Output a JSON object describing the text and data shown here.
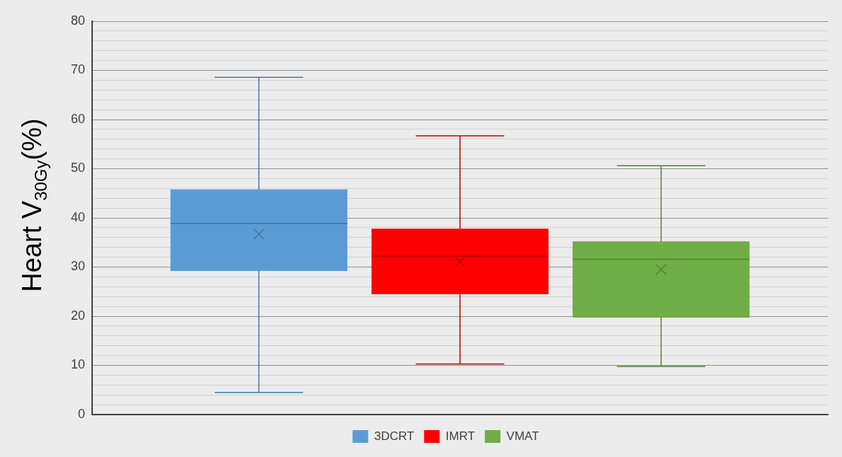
{
  "chart_data": {
    "type": "box",
    "ylabel": "Heart V$_{30Gy}$(%)",
    "categories": [
      null
    ],
    "series": [
      {
        "name": "3DCRT",
        "color": "#5b9bd5",
        "boxes": [
          {
            "low": 4.5,
            "q1": 29.2,
            "median": 38.9,
            "q3": 45.8,
            "high": 68.6,
            "mean": 36.7
          }
        ]
      },
      {
        "name": "IMRT",
        "color": "#ff0000",
        "boxes": [
          {
            "low": 10.3,
            "q1": 24.5,
            "median": 32.2,
            "q3": 37.8,
            "high": 56.7,
            "mean": 31.1
          }
        ]
      },
      {
        "name": "VMAT",
        "color": "#70ad47",
        "boxes": [
          {
            "low": 9.8,
            "q1": 19.7,
            "median": 31.6,
            "q3": 35.2,
            "high": 50.6,
            "mean": 29.5
          }
        ]
      }
    ],
    "ylim": [
      0,
      80
    ],
    "yticks": [
      0,
      {
        "value": 2,
        "label": null
      },
      {
        "value": 4,
        "label": null
      },
      {
        "value": 6,
        "label": null
      },
      {
        "value": 8,
        "label": null
      },
      10,
      {
        "value": 12,
        "label": null
      },
      {
        "value": 14,
        "label": null
      },
      {
        "value": 16,
        "label": null
      },
      {
        "value": 18,
        "label": null
      },
      20,
      {
        "value": 22,
        "label": null
      },
      {
        "value": 24,
        "label": null
      },
      {
        "value": 26,
        "label": null
      },
      {
        "value": 28,
        "label": null
      },
      30,
      {
        "value": 32,
        "label": null
      },
      {
        "value": 34,
        "label": null
      },
      {
        "value": 36,
        "label": null
      },
      {
        "value": 38,
        "label": null
      },
      40,
      {
        "value": 42,
        "label": null
      },
      {
        "value": 44,
        "label": null
      },
      {
        "value": 46,
        "label": null
      },
      {
        "value": 48,
        "label": null
      },
      50,
      {
        "value": 52,
        "label": null
      },
      {
        "value": 54,
        "label": null
      },
      {
        "value": 56,
        "label": null
      },
      {
        "value": 58,
        "label": null
      },
      60,
      {
        "value": 62,
        "label": null
      },
      {
        "value": 64,
        "label": null
      },
      {
        "value": 66,
        "label": null
      },
      {
        "value": 68,
        "label": null
      },
      70,
      {
        "value": 72,
        "label": null
      },
      {
        "value": 74,
        "label": null
      },
      {
        "value": 76,
        "label": null
      },
      {
        "value": 78,
        "label": null
      },
      80
    ],
    "grid": "y",
    "legend": "bottom",
    "tick_labels": "y",
    "marker": "cross"
  }
}
